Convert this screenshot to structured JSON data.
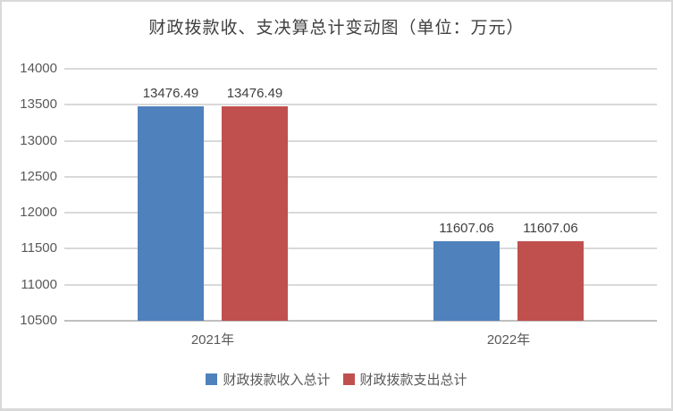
{
  "title": "财政拨款收、支决算总计变动图（单位：万元）",
  "colors": {
    "series_income": "#4F81BD",
    "series_expense": "#C0504D",
    "gridline": "#D9D9D9",
    "axis_line": "#BFBFBF",
    "tick_text": "#595959",
    "title_text": "#404040",
    "frame_border": "#D9D9D9"
  },
  "chart_data": {
    "type": "bar",
    "title": "财政拨款收、支决算总计变动图（单位：万元）",
    "categories": [
      "2021年",
      "2022年"
    ],
    "series": [
      {
        "name": "财政拨款收入总计",
        "color": "#4F81BD",
        "values": [
          13476.49,
          11607.06
        ]
      },
      {
        "name": "财政拨款支出总计",
        "color": "#C0504D",
        "values": [
          13476.49,
          11607.06
        ]
      }
    ],
    "data_labels": {
      "财政拨款收入总计": [
        "13476.49",
        "11607.06"
      ],
      "财政拨款支出总计": [
        "13476.49",
        "11607.06"
      ]
    },
    "xlabel": "",
    "ylabel": "",
    "ylim": [
      10500,
      14000
    ],
    "yticks": [
      10500,
      11000,
      11500,
      12000,
      12500,
      13000,
      13500,
      14000
    ],
    "grid": true,
    "legend_position": "bottom"
  }
}
